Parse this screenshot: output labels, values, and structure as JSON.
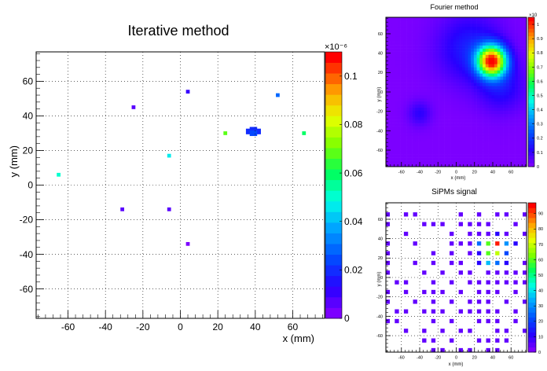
{
  "chart_data": [
    {
      "type": "heatmap",
      "title": "Iterative method",
      "xlabel": "x (mm)",
      "ylabel": "y (mm)",
      "xlim": [
        -77,
        77
      ],
      "ylim": [
        -77,
        77
      ],
      "xticks": [
        -60,
        -40,
        -20,
        0,
        20,
        40,
        60
      ],
      "yticks": [
        -60,
        -40,
        -20,
        0,
        20,
        40,
        60
      ],
      "grid": true,
      "colorbar": {
        "multiplier": "×10⁻⁶",
        "min": 0,
        "max": 0.11,
        "ticks": [
          0,
          0.02,
          0.04,
          0.06,
          0.08,
          0.1
        ],
        "tick_labels": [
          "0",
          "0.02",
          "0.04",
          "0.06",
          "0.08",
          "0.1"
        ]
      },
      "spots": [
        {
          "x": 39,
          "y": 32,
          "value": 0.021
        },
        {
          "x": 37,
          "y": 31,
          "value": 0.021
        },
        {
          "x": 41,
          "y": 31,
          "value": 0.021
        },
        {
          "x": 39,
          "y": 30,
          "value": 0.022
        },
        {
          "x": 52,
          "y": 52,
          "value": 0.03
        },
        {
          "x": 4,
          "y": 54,
          "value": 0.012
        },
        {
          "x": -25,
          "y": 45,
          "value": 0.005
        },
        {
          "x": 24,
          "y": 30,
          "value": 0.07
        },
        {
          "x": 66,
          "y": 30,
          "value": 0.06
        },
        {
          "x": -6,
          "y": 17,
          "value": 0.045
        },
        {
          "x": -65,
          "y": 6,
          "value": 0.05
        },
        {
          "x": -31,
          "y": -14,
          "value": 0.008
        },
        {
          "x": -6,
          "y": -14,
          "value": 0.006
        },
        {
          "x": 4,
          "y": -34,
          "value": 0.004
        }
      ]
    },
    {
      "type": "heatmap",
      "title": "Fourier method",
      "xlabel": "x (mm)",
      "ylabel": "y (mm)",
      "xlim": [
        -77,
        77
      ],
      "ylim": [
        -77,
        77
      ],
      "xticks": [
        -60,
        -40,
        -20,
        0,
        20,
        40,
        60
      ],
      "yticks": [
        -60,
        -40,
        -20,
        0,
        20,
        40,
        60
      ],
      "grid": false,
      "colorbar": {
        "multiplier": "×10",
        "min": 0,
        "max": 1.05,
        "ticks": [
          0,
          0.1,
          0.2,
          0.3,
          0.4,
          0.5,
          0.6,
          0.7,
          0.8,
          0.9,
          1
        ],
        "tick_labels": [
          "0",
          "0.1",
          "0.2",
          "0.3",
          "0.4",
          "0.5",
          "0.6",
          "0.7",
          "0.8",
          "0.9",
          "1"
        ]
      },
      "peaks": [
        {
          "x": 39,
          "y": 32,
          "peak": 1.0,
          "width_mm": 11
        },
        {
          "x": 15,
          "y": 45,
          "peak": 0.15,
          "width_mm": 25
        },
        {
          "x": 50,
          "y": 5,
          "peak": 0.12,
          "width_mm": 18
        },
        {
          "x": -40,
          "y": -22,
          "peak": 0.1,
          "width_mm": 9
        }
      ]
    },
    {
      "type": "heatmap",
      "title": "SiPMs signal",
      "xlabel": "x (mm)",
      "ylabel": "y (mm)",
      "xlim": [
        -77,
        77
      ],
      "ylim": [
        -77,
        77
      ],
      "xticks": [
        -60,
        -40,
        -20,
        0,
        20,
        40,
        60
      ],
      "yticks": [
        -60,
        -40,
        -20,
        0,
        20,
        40,
        60
      ],
      "grid": true,
      "pitch_mm": 10,
      "colorbar": {
        "min": 0,
        "max": 97,
        "ticks": [
          0,
          10,
          20,
          30,
          40,
          50,
          60,
          70,
          80,
          90
        ],
        "tick_labels": [
          "0",
          "10",
          "20",
          "30",
          "40",
          "50",
          "60",
          "70",
          "80",
          "90"
        ]
      },
      "cells": [
        {
          "x": -75,
          "y": 65,
          "value": 3
        },
        {
          "x": -55,
          "y": 65,
          "value": 3
        },
        {
          "x": -45,
          "y": 65,
          "value": 3
        },
        {
          "x": 5,
          "y": 65,
          "value": 3
        },
        {
          "x": 25,
          "y": 65,
          "value": 3
        },
        {
          "x": 45,
          "y": 65,
          "value": 3
        },
        {
          "x": 55,
          "y": 65,
          "value": 3
        },
        {
          "x": 75,
          "y": 65,
          "value": 3
        },
        {
          "x": -75,
          "y": 55,
          "value": 3
        },
        {
          "x": -35,
          "y": 55,
          "value": 3
        },
        {
          "x": -25,
          "y": 55,
          "value": 3
        },
        {
          "x": -15,
          "y": 55,
          "value": 3
        },
        {
          "x": 5,
          "y": 55,
          "value": 3
        },
        {
          "x": 15,
          "y": 55,
          "value": 3
        },
        {
          "x": 25,
          "y": 55,
          "value": 3
        },
        {
          "x": 35,
          "y": 55,
          "value": 3
        },
        {
          "x": 65,
          "y": 55,
          "value": 3
        },
        {
          "x": -55,
          "y": 45,
          "value": 3
        },
        {
          "x": -5,
          "y": 45,
          "value": 3
        },
        {
          "x": 15,
          "y": 45,
          "value": 3
        },
        {
          "x": 25,
          "y": 45,
          "value": 3
        },
        {
          "x": 35,
          "y": 45,
          "value": 3
        },
        {
          "x": 45,
          "y": 45,
          "value": 10
        },
        {
          "x": 55,
          "y": 45,
          "value": 3
        },
        {
          "x": 75,
          "y": 45,
          "value": 3
        },
        {
          "x": -75,
          "y": 35,
          "value": 3
        },
        {
          "x": -45,
          "y": 35,
          "value": 3
        },
        {
          "x": -5,
          "y": 35,
          "value": 3
        },
        {
          "x": 5,
          "y": 35,
          "value": 3
        },
        {
          "x": 15,
          "y": 35,
          "value": 3
        },
        {
          "x": 25,
          "y": 35,
          "value": 25
        },
        {
          "x": 35,
          "y": 35,
          "value": 60
        },
        {
          "x": 45,
          "y": 35,
          "value": 95
        },
        {
          "x": 55,
          "y": 35,
          "value": 30
        },
        {
          "x": 65,
          "y": 35,
          "value": 10
        },
        {
          "x": -75,
          "y": 25,
          "value": 3
        },
        {
          "x": -25,
          "y": 25,
          "value": 3
        },
        {
          "x": -5,
          "y": 25,
          "value": 3
        },
        {
          "x": 15,
          "y": 25,
          "value": 3
        },
        {
          "x": 25,
          "y": 25,
          "value": 10
        },
        {
          "x": 35,
          "y": 25,
          "value": 60
        },
        {
          "x": 45,
          "y": 25,
          "value": 70
        },
        {
          "x": 55,
          "y": 25,
          "value": 20
        },
        {
          "x": -75,
          "y": 15,
          "value": 3
        },
        {
          "x": -45,
          "y": 15,
          "value": 3
        },
        {
          "x": -25,
          "y": 15,
          "value": 3
        },
        {
          "x": -5,
          "y": 15,
          "value": 3
        },
        {
          "x": 5,
          "y": 15,
          "value": 3
        },
        {
          "x": 25,
          "y": 15,
          "value": 10
        },
        {
          "x": 35,
          "y": 15,
          "value": 35
        },
        {
          "x": 45,
          "y": 15,
          "value": 25
        },
        {
          "x": 55,
          "y": 15,
          "value": 10
        },
        {
          "x": 75,
          "y": 15,
          "value": 3
        },
        {
          "x": -75,
          "y": 5,
          "value": 3
        },
        {
          "x": -35,
          "y": 5,
          "value": 3
        },
        {
          "x": -15,
          "y": 5,
          "value": 3
        },
        {
          "x": 5,
          "y": 5,
          "value": 3
        },
        {
          "x": 15,
          "y": 5,
          "value": 3
        },
        {
          "x": 35,
          "y": 5,
          "value": 3
        },
        {
          "x": 45,
          "y": 5,
          "value": 3
        },
        {
          "x": 55,
          "y": 5,
          "value": 3
        },
        {
          "x": 65,
          "y": 5,
          "value": 3
        },
        {
          "x": 75,
          "y": 5,
          "value": 3
        },
        {
          "x": -65,
          "y": -5,
          "value": 3
        },
        {
          "x": -55,
          "y": -5,
          "value": 3
        },
        {
          "x": -25,
          "y": -5,
          "value": 3
        },
        {
          "x": -5,
          "y": -5,
          "value": 3
        },
        {
          "x": 15,
          "y": -5,
          "value": 3
        },
        {
          "x": 25,
          "y": -5,
          "value": 3
        },
        {
          "x": 35,
          "y": -5,
          "value": 3
        },
        {
          "x": 45,
          "y": -5,
          "value": 3
        },
        {
          "x": 55,
          "y": -5,
          "value": 3
        },
        {
          "x": 65,
          "y": -5,
          "value": 3
        },
        {
          "x": 75,
          "y": -5,
          "value": 3
        },
        {
          "x": -75,
          "y": -15,
          "value": 3
        },
        {
          "x": -55,
          "y": -15,
          "value": 3
        },
        {
          "x": -35,
          "y": -15,
          "value": 3
        },
        {
          "x": -25,
          "y": -15,
          "value": 3
        },
        {
          "x": -15,
          "y": -15,
          "value": 3
        },
        {
          "x": 5,
          "y": -15,
          "value": 3
        },
        {
          "x": 25,
          "y": -15,
          "value": 3
        },
        {
          "x": 35,
          "y": -15,
          "value": 3
        },
        {
          "x": 45,
          "y": -15,
          "value": 3
        },
        {
          "x": 65,
          "y": -15,
          "value": 3
        },
        {
          "x": -75,
          "y": -25,
          "value": 3
        },
        {
          "x": -45,
          "y": -25,
          "value": 3
        },
        {
          "x": -25,
          "y": -25,
          "value": 3
        },
        {
          "x": -5,
          "y": -25,
          "value": 3
        },
        {
          "x": 15,
          "y": -25,
          "value": 3
        },
        {
          "x": 25,
          "y": -25,
          "value": 3
        },
        {
          "x": 35,
          "y": -25,
          "value": 3
        },
        {
          "x": 55,
          "y": -25,
          "value": 3
        },
        {
          "x": 75,
          "y": -25,
          "value": 3
        },
        {
          "x": -65,
          "y": -35,
          "value": 3
        },
        {
          "x": -55,
          "y": -35,
          "value": 3
        },
        {
          "x": -35,
          "y": -35,
          "value": 3
        },
        {
          "x": -25,
          "y": -35,
          "value": 3
        },
        {
          "x": -15,
          "y": -35,
          "value": 3
        },
        {
          "x": 5,
          "y": -35,
          "value": 3
        },
        {
          "x": 15,
          "y": -35,
          "value": 3
        },
        {
          "x": 25,
          "y": -35,
          "value": 3
        },
        {
          "x": 35,
          "y": -35,
          "value": 3
        },
        {
          "x": 45,
          "y": -35,
          "value": 3
        },
        {
          "x": 65,
          "y": -35,
          "value": 3
        },
        {
          "x": -75,
          "y": -45,
          "value": 3
        },
        {
          "x": -65,
          "y": -45,
          "value": 3
        },
        {
          "x": -25,
          "y": -45,
          "value": 3
        },
        {
          "x": -5,
          "y": -45,
          "value": 3
        },
        {
          "x": 25,
          "y": -45,
          "value": 3
        },
        {
          "x": 35,
          "y": -45,
          "value": 3
        },
        {
          "x": 45,
          "y": -45,
          "value": 3
        },
        {
          "x": 65,
          "y": -45,
          "value": 3
        },
        {
          "x": -55,
          "y": -55,
          "value": 3
        },
        {
          "x": -35,
          "y": -55,
          "value": 3
        },
        {
          "x": -15,
          "y": -55,
          "value": 3
        },
        {
          "x": 5,
          "y": -55,
          "value": 3
        },
        {
          "x": 15,
          "y": -55,
          "value": 3
        },
        {
          "x": 45,
          "y": -55,
          "value": 3
        },
        {
          "x": 55,
          "y": -55,
          "value": 3
        },
        {
          "x": 75,
          "y": -55,
          "value": 3
        },
        {
          "x": -35,
          "y": -65,
          "value": 3
        },
        {
          "x": -25,
          "y": -65,
          "value": 3
        },
        {
          "x": -5,
          "y": -65,
          "value": 3
        },
        {
          "x": 25,
          "y": -65,
          "value": 3
        },
        {
          "x": 35,
          "y": -65,
          "value": 3
        },
        {
          "x": 45,
          "y": -65,
          "value": 3
        },
        {
          "x": 55,
          "y": -65,
          "value": 3
        },
        {
          "x": -25,
          "y": -75,
          "value": 3
        },
        {
          "x": -15,
          "y": -75,
          "value": 3
        },
        {
          "x": 5,
          "y": -75,
          "value": 3
        },
        {
          "x": 15,
          "y": -75,
          "value": 3
        },
        {
          "x": 35,
          "y": -75,
          "value": 3
        },
        {
          "x": 45,
          "y": -75,
          "value": 3
        }
      ]
    }
  ]
}
